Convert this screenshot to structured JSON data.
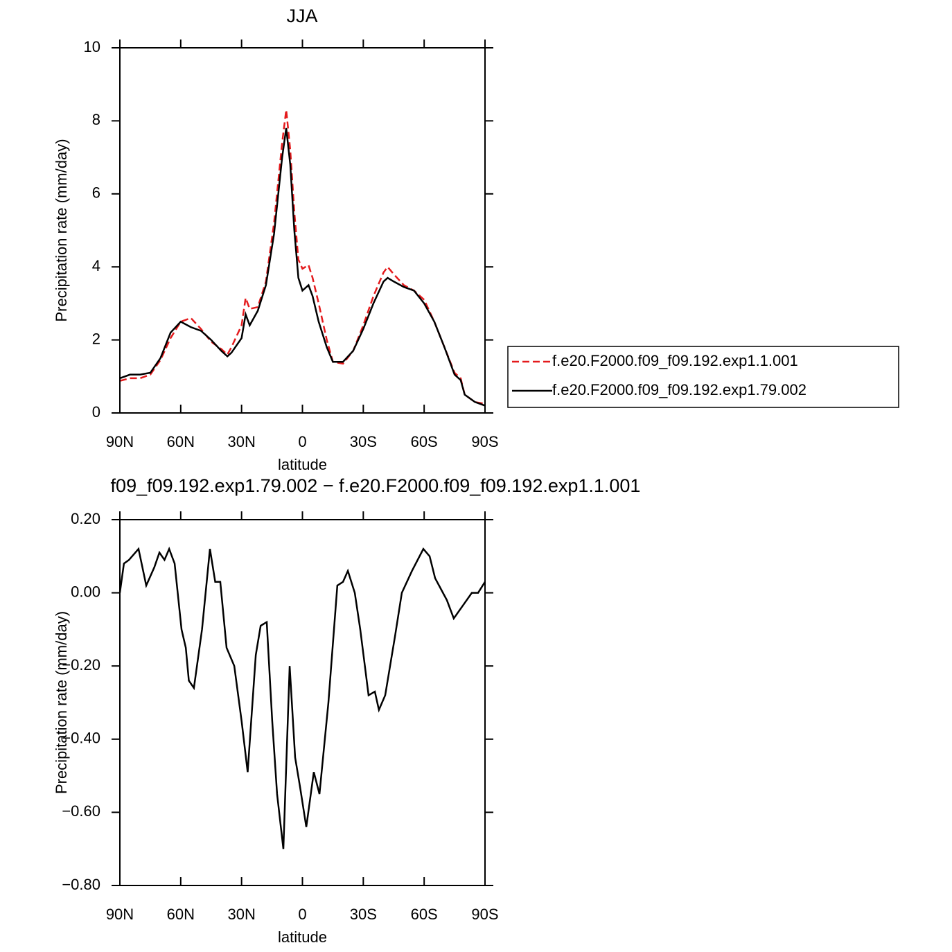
{
  "chart_data": [
    {
      "type": "line",
      "title": "JJA",
      "x_label": "latitude",
      "y_label": "Precipitation rate (mm/day)",
      "x": [
        90,
        85,
        80,
        75,
        70,
        65,
        60,
        55,
        50,
        45,
        40,
        37,
        35,
        30,
        28,
        26,
        22,
        18,
        14,
        10,
        8,
        6,
        4,
        2,
        0,
        -3,
        -5,
        -8,
        -12,
        -15,
        -20,
        -25,
        -30,
        -35,
        -40,
        -42,
        -45,
        -50,
        -55,
        -60,
        -65,
        -70,
        -75,
        -78,
        -80,
        -85,
        -90
      ],
      "series": [
        {
          "name": "f.e20.F2000.f09_f09.192.exp1.1.001",
          "color": "#e41a1c",
          "style": "dashed",
          "values": [
            0.88,
            0.95,
            0.95,
            1.05,
            1.45,
            2.05,
            2.5,
            2.6,
            2.3,
            1.95,
            1.75,
            1.6,
            1.8,
            2.4,
            3.15,
            2.85,
            2.9,
            3.6,
            5.2,
            7.4,
            8.3,
            7.2,
            5.5,
            4.2,
            3.95,
            4.05,
            3.7,
            3.0,
            2.0,
            1.4,
            1.35,
            1.7,
            2.4,
            3.2,
            3.85,
            4.0,
            3.8,
            3.5,
            3.35,
            3.1,
            2.5,
            1.8,
            1.1,
            0.95,
            0.5,
            0.3,
            0.25
          ]
        },
        {
          "name": "f.e20.F2000.f09_f09.192.exp1.79.002",
          "color": "#000000",
          "style": "solid",
          "values": [
            0.95,
            1.05,
            1.05,
            1.1,
            1.5,
            2.2,
            2.5,
            2.35,
            2.25,
            2.0,
            1.7,
            1.55,
            1.65,
            2.05,
            2.7,
            2.4,
            2.8,
            3.5,
            4.9,
            7.0,
            7.8,
            6.8,
            5.0,
            3.7,
            3.35,
            3.5,
            3.2,
            2.5,
            1.8,
            1.4,
            1.4,
            1.7,
            2.3,
            3.0,
            3.6,
            3.7,
            3.6,
            3.45,
            3.35,
            3.0,
            2.5,
            1.8,
            1.05,
            0.9,
            0.5,
            0.3,
            0.2
          ]
        }
      ],
      "xlim": [
        90,
        -90
      ],
      "xticks": [
        {
          "value": 90,
          "label": "90N"
        },
        {
          "value": 60,
          "label": "60N"
        },
        {
          "value": 30,
          "label": "30N"
        },
        0,
        {
          "value": -30,
          "label": "30S"
        },
        {
          "value": -60,
          "label": "60S"
        },
        {
          "value": -90,
          "label": "90S"
        }
      ],
      "ylim": [
        0,
        10
      ],
      "yticks": [
        0,
        2,
        4,
        6,
        8,
        10
      ]
    },
    {
      "type": "line",
      "title": "f09_f09.192.exp1.79.002 − f.e20.F2000.f09_f09.192.exp1.1.001",
      "x_label": "latitude",
      "y_label": "Precipitation rate (mm/day)",
      "x": [
        90,
        88,
        85.5,
        80.8,
        77,
        73,
        70.5,
        68,
        65.7,
        63,
        59.6,
        57.5,
        56,
        53.5,
        49.5,
        45.6,
        43,
        40.5,
        37.4,
        33.6,
        30,
        27,
        23,
        20.6,
        17.6,
        14.9,
        12.5,
        9.4,
        6.3,
        3.6,
        1.2,
        -1.9,
        -5.6,
        -8.4,
        -12.8,
        -17.2,
        -20,
        -22.4,
        -25.8,
        -28.5,
        -32.6,
        -35.7,
        -37.7,
        -40.8,
        -45.6,
        -49,
        -54,
        -59.6,
        -62.7,
        -65.4,
        -71.2,
        -74.6,
        -79.7,
        -83.5,
        -86.6,
        -90
      ],
      "series": [
        {
          "color": "#000000",
          "style": "solid",
          "values": [
            0.0,
            0.08,
            0.09,
            0.12,
            0.02,
            0.07,
            0.11,
            0.09,
            0.12,
            0.08,
            -0.1,
            -0.15,
            -0.24,
            -0.26,
            -0.1,
            0.12,
            0.03,
            0.03,
            -0.15,
            -0.2,
            -0.35,
            -0.49,
            -0.17,
            -0.09,
            -0.08,
            -0.35,
            -0.55,
            -0.7,
            -0.2,
            -0.45,
            -0.53,
            -0.64,
            -0.49,
            -0.55,
            -0.3,
            0.02,
            0.03,
            0.06,
            0.0,
            -0.1,
            -0.28,
            -0.27,
            -0.32,
            -0.28,
            -0.12,
            0.0,
            0.06,
            0.12,
            0.1,
            0.04,
            -0.02,
            -0.07,
            -0.03,
            0.0,
            0.0,
            0.03
          ]
        }
      ],
      "xlim": [
        90,
        -90
      ],
      "xticks": [
        {
          "value": 90,
          "label": "90N"
        },
        {
          "value": 60,
          "label": "60N"
        },
        {
          "value": 30,
          "label": "30N"
        },
        0,
        {
          "value": -30,
          "label": "30S"
        },
        {
          "value": -60,
          "label": "60S"
        },
        {
          "value": -90,
          "label": "90S"
        }
      ],
      "ylim": [
        -0.8,
        0.2
      ],
      "yticks": [
        {
          "value": -0.8,
          "label": "−0.80"
        },
        {
          "value": -0.6,
          "label": "−0.60"
        },
        {
          "value": -0.4,
          "label": "−0.40"
        },
        {
          "value": -0.2,
          "label": "−0.20"
        },
        {
          "value": 0,
          "label": "0.00"
        },
        {
          "value": 0.2,
          "label": "0.20"
        }
      ]
    }
  ]
}
